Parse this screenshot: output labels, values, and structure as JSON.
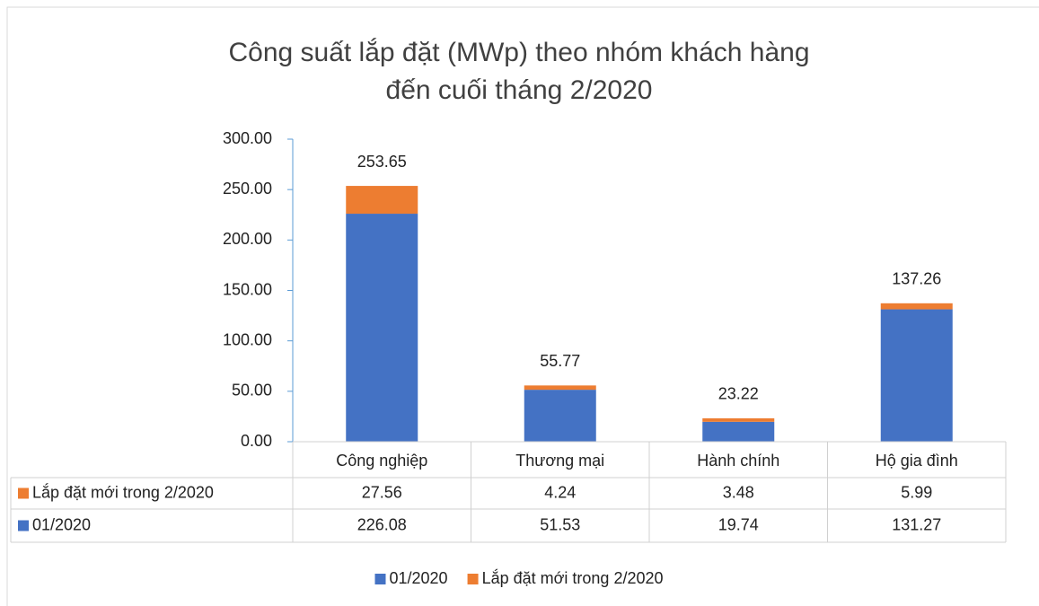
{
  "chart_data": {
    "type": "stacked_bar",
    "title": [
      "Công suất lắp đặt (MWp) theo nhóm khách hàng",
      "đến cuối tháng 2/2020"
    ],
    "categories": [
      "Công nghiệp",
      "Thương mại",
      "Hành chính",
      "Hộ gia đình"
    ],
    "series": [
      {
        "name": "01/2020",
        "color": "#4472c4",
        "values": [
          226.08,
          51.53,
          19.74,
          131.27
        ]
      },
      {
        "name": "Lắp đặt mới trong 2/2020",
        "color": "#ed7d31",
        "values": [
          27.56,
          4.24,
          3.48,
          5.99
        ]
      }
    ],
    "totals": [
      253.65,
      55.77,
      23.22,
      137.26
    ],
    "ylim": [
      0,
      300
    ],
    "yticks": [
      {
        "value": 0,
        "label": "0.00"
      },
      {
        "value": 50,
        "label": "50.00"
      },
      {
        "value": 100,
        "label": "100.00"
      },
      {
        "value": 150,
        "label": "150.00"
      },
      {
        "value": 200,
        "label": "200.00"
      },
      {
        "value": 250,
        "label": "250.00"
      },
      {
        "value": 300,
        "label": "300.00"
      }
    ],
    "legend": "bottom",
    "data_table": true
  }
}
